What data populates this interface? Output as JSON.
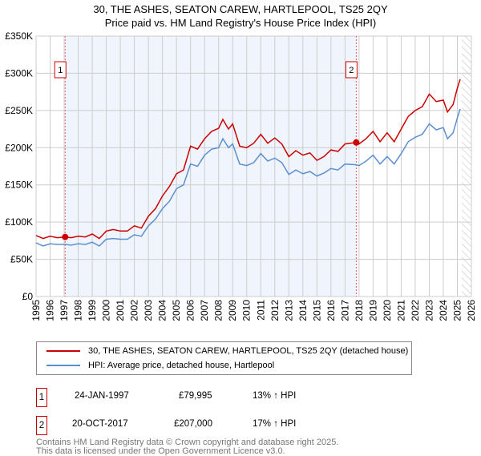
{
  "title_line1": "30, THE ASHES, SEATON CAREW, HARTLEPOOL, TS25 2QY",
  "title_line2": "Price paid vs. HM Land Registry's House Price Index (HPI)",
  "chart_data": {
    "type": "line",
    "xlim": [
      1995,
      2026
    ],
    "ylim": [
      0,
      350000
    ],
    "x_ticks": [
      "1995",
      "1996",
      "1997",
      "1998",
      "1999",
      "2000",
      "2001",
      "2002",
      "2003",
      "2004",
      "2005",
      "2006",
      "2007",
      "2008",
      "2009",
      "2010",
      "2011",
      "2012",
      "2013",
      "2014",
      "2015",
      "2016",
      "2017",
      "2018",
      "2019",
      "2020",
      "2021",
      "2022",
      "2023",
      "2024",
      "2025",
      "2026"
    ],
    "y_ticks": [
      {
        "v": 0,
        "label": "£0"
      },
      {
        "v": 50000,
        "label": "£50K"
      },
      {
        "v": 100000,
        "label": "£100K"
      },
      {
        "v": 150000,
        "label": "£150K"
      },
      {
        "v": 200000,
        "label": "£200K"
      },
      {
        "v": 250000,
        "label": "£250K"
      },
      {
        "v": 300000,
        "label": "£300K"
      },
      {
        "v": 350000,
        "label": "£350K"
      }
    ],
    "shaded_range": [
      1997.07,
      2017.8
    ],
    "hatched_from": 2025.3,
    "series": [
      {
        "name": "30, THE ASHES, SEATON CAREW, HARTLEPOOL, TS25 2QY (detached house)",
        "color": "#cc0000",
        "x": [
          1995,
          1995.5,
          1996,
          1996.5,
          1997.07,
          1997.5,
          1998,
          1998.5,
          1999,
          1999.5,
          2000,
          2000.5,
          2001,
          2001.5,
          2002,
          2002.5,
          2003,
          2003.5,
          2004,
          2004.5,
          2005,
          2005.5,
          2006,
          2006.5,
          2007,
          2007.5,
          2008,
          2008.3,
          2008.7,
          2009,
          2009.5,
          2010,
          2010.5,
          2011,
          2011.5,
          2012,
          2012.5,
          2013,
          2013.5,
          2014,
          2014.5,
          2015,
          2015.5,
          2016,
          2016.5,
          2017,
          2017.8,
          2018,
          2018.5,
          2019,
          2019.5,
          2020,
          2020.5,
          2021,
          2021.5,
          2022,
          2022.5,
          2023,
          2023.5,
          2024,
          2024.3,
          2024.7,
          2025,
          2025.2
        ],
        "y": [
          82000,
          78000,
          81000,
          79000,
          79995,
          79000,
          81000,
          80000,
          84000,
          78000,
          88000,
          90000,
          88000,
          88000,
          95000,
          92000,
          108000,
          118000,
          135000,
          148000,
          165000,
          170000,
          202000,
          198000,
          212000,
          222000,
          226000,
          238000,
          225000,
          232000,
          202000,
          200000,
          206000,
          218000,
          206000,
          213000,
          205000,
          188000,
          196000,
          190000,
          193000,
          183000,
          188000,
          197000,
          195000,
          205000,
          207000,
          205000,
          212000,
          222000,
          208000,
          220000,
          208000,
          225000,
          242000,
          250000,
          255000,
          272000,
          262000,
          264000,
          248000,
          258000,
          280000,
          292000
        ]
      },
      {
        "name": "HPI: Average price, detached house, Hartlepool",
        "color": "#5b8fd0",
        "x": [
          1995,
          1995.5,
          1996,
          1996.5,
          1997.07,
          1997.5,
          1998,
          1998.5,
          1999,
          1999.5,
          2000,
          2000.5,
          2001,
          2001.5,
          2002,
          2002.5,
          2003,
          2003.5,
          2004,
          2004.5,
          2005,
          2005.5,
          2006,
          2006.5,
          2007,
          2007.5,
          2008,
          2008.3,
          2008.7,
          2009,
          2009.5,
          2010,
          2010.5,
          2011,
          2011.5,
          2012,
          2012.5,
          2013,
          2013.5,
          2014,
          2014.5,
          2015,
          2015.5,
          2016,
          2016.5,
          2017,
          2017.8,
          2018,
          2018.5,
          2019,
          2019.5,
          2020,
          2020.5,
          2021,
          2021.5,
          2022,
          2022.5,
          2023,
          2023.5,
          2024,
          2024.3,
          2024.7,
          2025,
          2025.2
        ],
        "y": [
          72000,
          68000,
          71000,
          70000,
          70000,
          69000,
          71000,
          70000,
          73000,
          68000,
          77000,
          78000,
          77000,
          77000,
          83000,
          81000,
          95000,
          104000,
          118000,
          128000,
          145000,
          150000,
          178000,
          175000,
          190000,
          198000,
          200000,
          212000,
          200000,
          205000,
          178000,
          176000,
          180000,
          192000,
          182000,
          186000,
          180000,
          164000,
          170000,
          165000,
          168000,
          162000,
          166000,
          172000,
          170000,
          178000,
          177000,
          176000,
          182000,
          190000,
          178000,
          188000,
          178000,
          192000,
          208000,
          214000,
          218000,
          232000,
          224000,
          227000,
          212000,
          220000,
          240000,
          252000
        ]
      }
    ],
    "sales": [
      {
        "id": "1",
        "x": 1997.07,
        "y": 79995
      },
      {
        "id": "2",
        "x": 2017.8,
        "y": 207000
      }
    ]
  },
  "legend": {
    "property": "30, THE ASHES, SEATON CAREW, HARTLEPOOL, TS25 2QY (detached house)",
    "hpi": "HPI: Average price, detached house, Hartlepool"
  },
  "transactions": [
    {
      "id": "1",
      "date": "24-JAN-1997",
      "price": "£79,995",
      "hpi": "13% ↑ HPI"
    },
    {
      "id": "2",
      "date": "20-OCT-2017",
      "price": "£207,000",
      "hpi": "17% ↑ HPI"
    }
  ],
  "footer": {
    "line1": "Contains HM Land Registry data © Crown copyright and database right 2025.",
    "line2": "This data is licensed under the Open Government Licence v3.0."
  }
}
